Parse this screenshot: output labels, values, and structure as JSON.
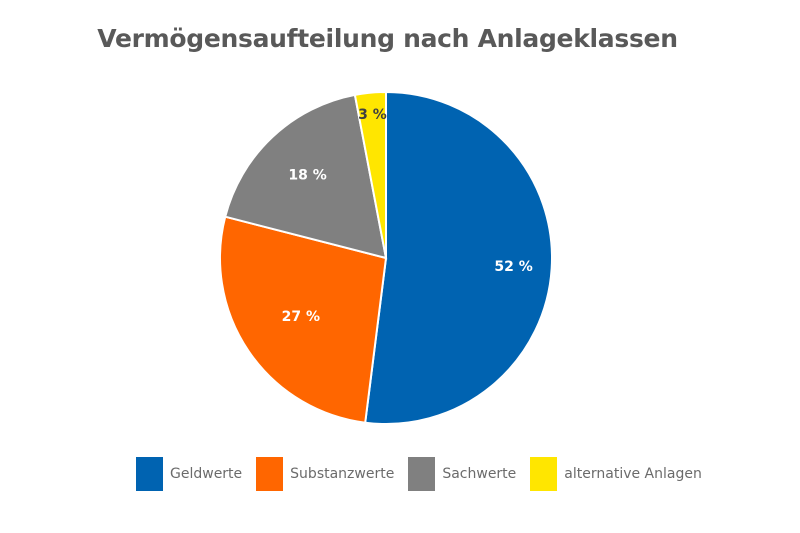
{
  "chart_data": {
    "type": "pie",
    "title": "Vermögensaufteilung nach Anlageklassen",
    "categories": [
      "Geldwerte",
      "Substanzwerte",
      "Sachwerte",
      "alternative Anlagen"
    ],
    "values": [
      52,
      27,
      18,
      3
    ],
    "data_labels": [
      "52 %",
      "27 %",
      "18 %",
      "3 %"
    ],
    "colors": [
      "#0063B1",
      "#FF6600",
      "#808080",
      "#FFE600"
    ],
    "label_colors": [
      "#ffffff",
      "#ffffff",
      "#ffffff",
      "#404040"
    ],
    "start_angle": "top",
    "direction": "clockwise",
    "legend_position": "bottom"
  }
}
